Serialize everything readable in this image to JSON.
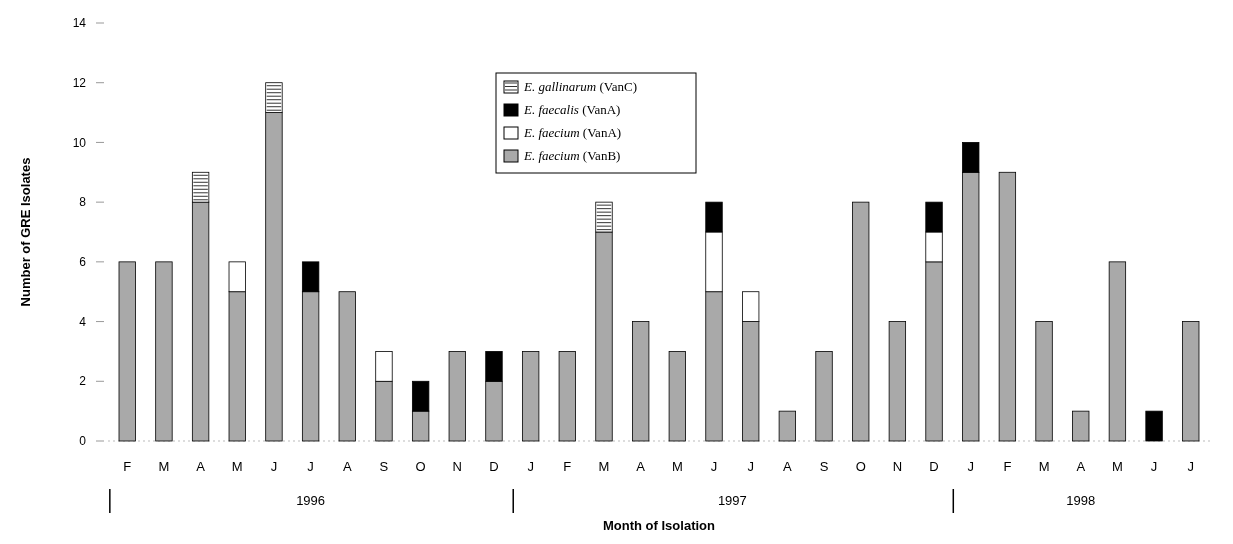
{
  "chart_data": {
    "type": "bar",
    "stacked": true,
    "xlabel": "Month of Isolation",
    "ylabel": "Number of GRE Isolates",
    "categories": [
      "F",
      "M",
      "A",
      "M",
      "J",
      "J",
      "A",
      "S",
      "O",
      "N",
      "D",
      "J",
      "F",
      "M",
      "A",
      "M",
      "J",
      "J",
      "A",
      "S",
      "O",
      "N",
      "D",
      "J",
      "F",
      "M",
      "A",
      "M",
      "J",
      "J"
    ],
    "series": [
      {
        "name": "E. faecium (VanB)",
        "color": "#a9a9a9",
        "values": [
          6,
          6,
          8,
          5,
          11,
          5,
          5,
          2,
          1,
          3,
          2,
          3,
          3,
          7,
          4,
          3,
          5,
          4,
          1,
          3,
          8,
          4,
          6,
          9,
          9,
          4,
          1,
          6,
          0,
          4
        ]
      },
      {
        "name": "E. faecium (VanA)",
        "color": "#ffffff",
        "values": [
          0,
          0,
          0,
          1,
          0,
          0,
          0,
          1,
          0,
          0,
          0,
          0,
          0,
          0,
          0,
          0,
          2,
          1,
          0,
          0,
          0,
          0,
          1,
          0,
          0,
          0,
          0,
          0,
          0,
          0
        ]
      },
      {
        "name": "E. faecalis (VanA)",
        "color": "#000000",
        "values": [
          0,
          0,
          0,
          0,
          0,
          1,
          0,
          0,
          1,
          0,
          1,
          0,
          0,
          0,
          0,
          0,
          1,
          0,
          0,
          0,
          0,
          0,
          1,
          1,
          0,
          0,
          0,
          0,
          1,
          0
        ]
      },
      {
        "name": "E. gallinarum (VanC)",
        "color": "#ffffff",
        "values": [
          0,
          0,
          1,
          0,
          1,
          0,
          0,
          0,
          0,
          0,
          0,
          0,
          0,
          1,
          0,
          0,
          0,
          0,
          0,
          0,
          0,
          0,
          0,
          0,
          0,
          0,
          0,
          0,
          0,
          0
        ]
      }
    ],
    "ylim": [
      0,
      14
    ],
    "yticks": [
      0,
      2,
      4,
      6,
      8,
      10,
      12,
      14
    ],
    "legend": "top",
    "grid": false,
    "annotations": [
      "1996",
      "1997",
      "1998"
    ]
  }
}
